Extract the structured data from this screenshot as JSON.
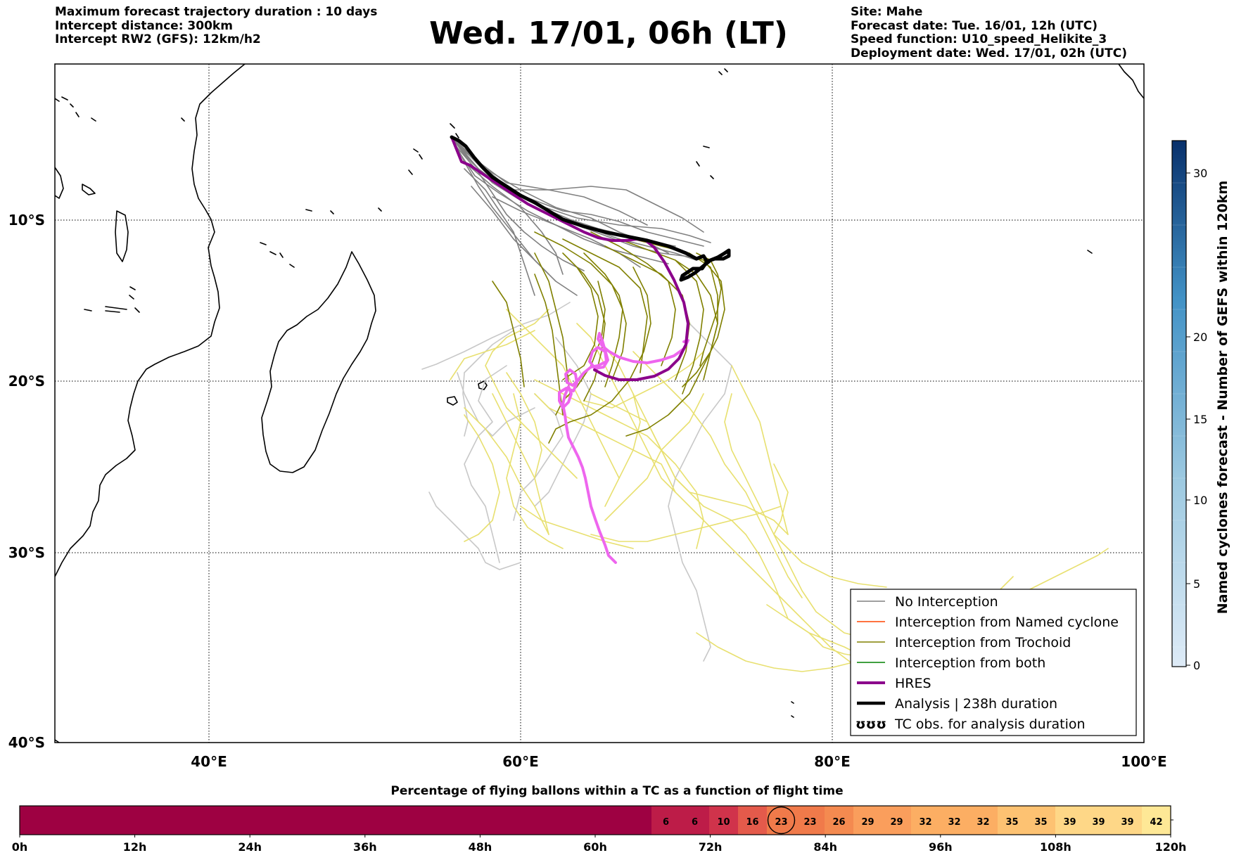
{
  "header": {
    "left_lines": [
      "Maximum forecast trajectory duration : 10 days",
      "Intercept distance: 300km",
      "Intercept RW2 (GFS):  12km/h2"
    ],
    "title": "Wed. 17/01, 06h (LT)",
    "right_lines": [
      "Site: Mahe",
      "Forecast date: Tue. 16/01, 12h (UTC)",
      "Speed function: U10_speed_Helikite_3",
      "Deployment date: Wed. 17/01, 02h (UTC)"
    ]
  },
  "map": {
    "lon_range": [
      30,
      100
    ],
    "lat_range": [
      -40,
      -1
    ],
    "lon_ticks": [
      "40°E",
      "60°E",
      "80°E",
      "100°E"
    ],
    "lat_ticks": [
      "10°S",
      "20°S",
      "30°S",
      "40°S"
    ],
    "colors": {
      "no_interception": "#808080",
      "named_cyclone": "#ff4500",
      "trochoid": "#808000",
      "both": "#008000",
      "hres": "#8b008b",
      "analysis": "#000000",
      "light_gray": "#c8c8c8",
      "light_yellow": "#e8e070",
      "pink": "#ee66ee"
    },
    "legend": [
      {
        "label": "No Interception",
        "color": "#808080",
        "style": "thin"
      },
      {
        "label": "Interception from Named cyclone",
        "color": "#ff4500",
        "style": "thin"
      },
      {
        "label": "Interception from Trochoid",
        "color": "#808000",
        "style": "thin"
      },
      {
        "label": "Interception from both",
        "color": "#008000",
        "style": "thin"
      },
      {
        "label": "HRES",
        "color": "#8b008b",
        "style": "thick"
      },
      {
        "label": "Analysis | 238h duration",
        "color": "#000000",
        "style": "thick"
      },
      {
        "label": "TC obs. for analysis duration",
        "color": "#000000",
        "style": "symbol",
        "symbol": "ʊʊʊ"
      }
    ]
  },
  "right_colorbar": {
    "label": "Named cyclones forecast - Number of GEFS within 120km",
    "ticks": [
      "0",
      "5",
      "10",
      "15",
      "20",
      "30"
    ]
  },
  "bottom_bar": {
    "title": "Percentage of flying ballons within a TC as a function of flight time",
    "time_ticks": [
      "0h",
      "12h",
      "24h",
      "36h",
      "48h",
      "60h",
      "72h",
      "84h",
      "96h",
      "108h",
      "120h"
    ],
    "cell_values": [
      "6",
      "6",
      "10",
      "16",
      "23",
      "23",
      "26",
      "29",
      "29",
      "32",
      "32",
      "32",
      "35",
      "35",
      "39",
      "39",
      "39",
      "42"
    ],
    "cell_colors": [
      "#bd1c48",
      "#bd1c48",
      "#d0334b",
      "#e45a4b",
      "#f07a4a",
      "#f07a4a",
      "#f48a50",
      "#fa9e5c",
      "#fa9e5c",
      "#fcae63",
      "#fcae63",
      "#fcae63",
      "#fdc272",
      "#fdc272",
      "#fed787",
      "#fed787",
      "#fed787",
      "#fee896"
    ],
    "base_color": "#9e0142",
    "highlight_cell": 4
  }
}
